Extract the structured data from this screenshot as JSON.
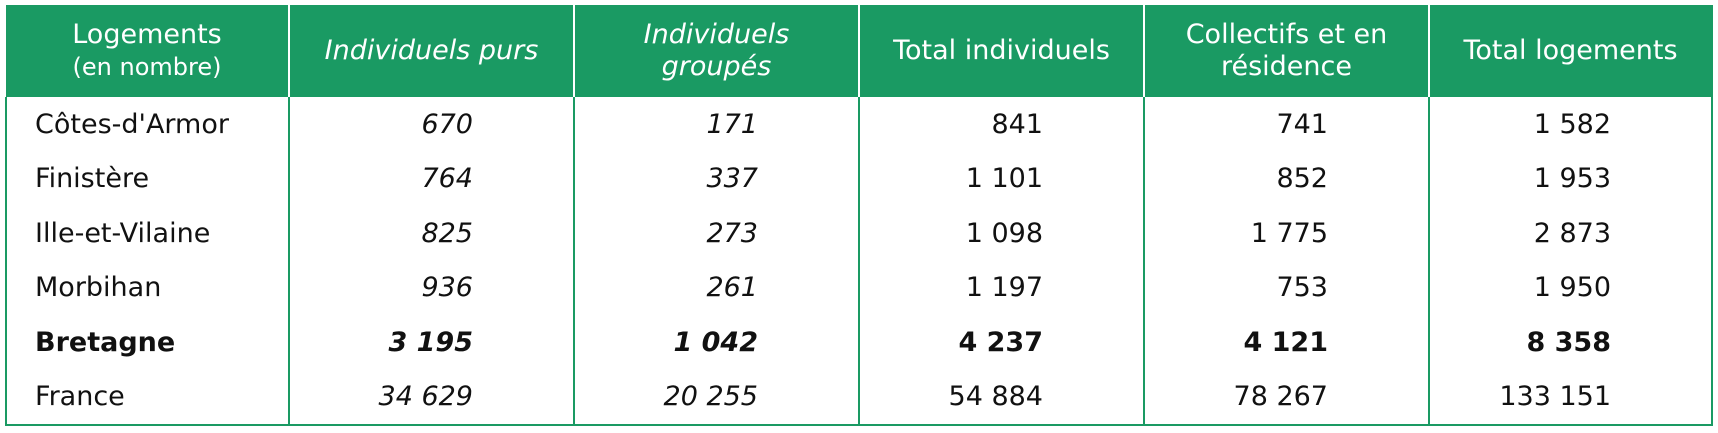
{
  "table": {
    "header": [
      [
        "Logements",
        "(en nombre)"
      ],
      [
        "Individuels purs"
      ],
      [
        "Individuels",
        "groupés"
      ],
      [
        "Total individuels"
      ],
      [
        "Collectifs et en",
        "résidence"
      ],
      [
        "Total logements"
      ]
    ],
    "rows": [
      [
        "Côtes-d'Armor",
        "670",
        "171",
        "841",
        "741",
        "1 582"
      ],
      [
        "Finistère",
        "764",
        "337",
        "1 101",
        "852",
        "1 953"
      ],
      [
        "Ille-et-Vilaine",
        "825",
        "273",
        "1 098",
        "1 775",
        "2 873"
      ],
      [
        "Morbihan",
        "936",
        "261",
        "1 197",
        "753",
        "1 950"
      ],
      [
        "Bretagne",
        "3 195",
        "1 042",
        "4 237",
        "4 121",
        "8 358"
      ],
      [
        "France",
        "34 629",
        "20 255",
        "54 884",
        "78 267",
        "133 151"
      ]
    ],
    "bold_row": 4,
    "italic_columns": [
      1,
      2
    ]
  }
}
